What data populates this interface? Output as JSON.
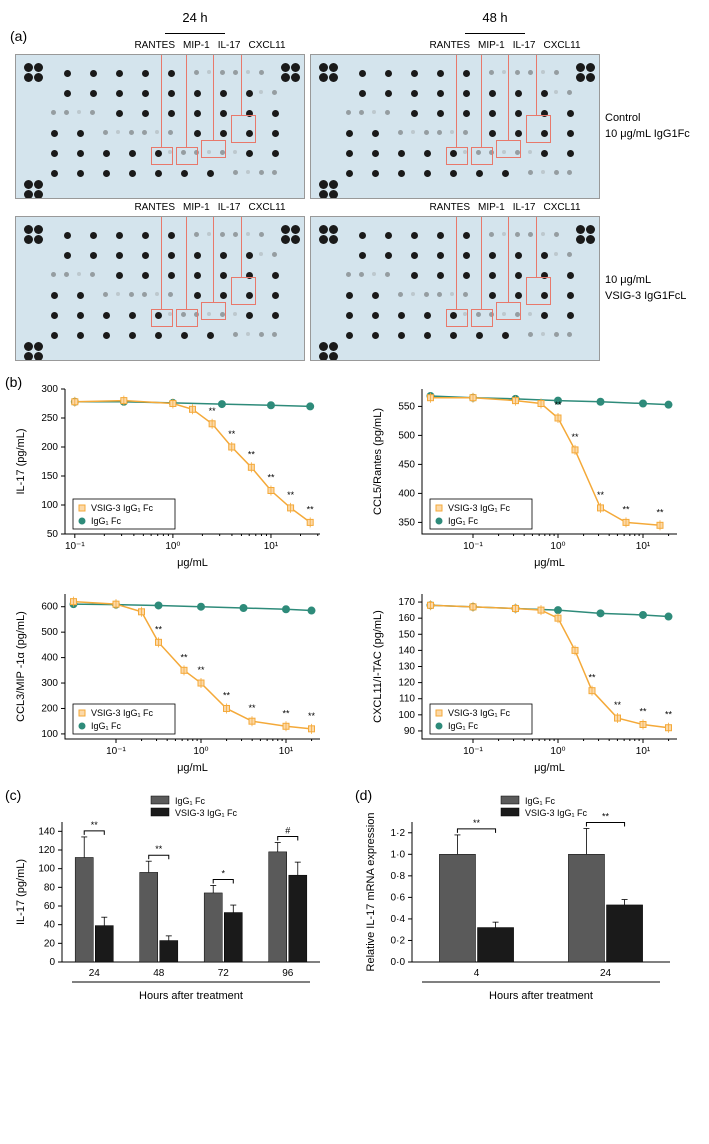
{
  "panelA": {
    "label": "(a)",
    "timeLabels": [
      "24 h",
      "48 h"
    ],
    "analytes": [
      "RANTES",
      "MIP-1",
      "IL-17",
      "CXCL11"
    ],
    "rowLabels": [
      "Control\n10 μg/mL IgG1Fc",
      "10 μg/mL\nVSIG-3 IgG1FcL"
    ],
    "blot_bg": "#d4e4ed",
    "highlight_color": "#e8786b"
  },
  "panelB": {
    "label": "(b)",
    "charts": [
      {
        "ylabel": "IL-17 (pg/mL)",
        "xlabel": "μg/mL",
        "ylim": [
          50,
          300
        ],
        "yticks": [
          50,
          100,
          150,
          200,
          250,
          300
        ],
        "xlim": [
          -1.1,
          1.5
        ],
        "xticks_log": [
          -1,
          0,
          1
        ],
        "xticklabels": [
          "10⁻¹",
          "10⁰",
          "10¹"
        ],
        "vsig": [
          [
            -1.0,
            278
          ],
          [
            -0.5,
            280
          ],
          [
            0,
            275
          ],
          [
            0.2,
            265
          ],
          [
            0.4,
            240
          ],
          [
            0.6,
            200
          ],
          [
            0.8,
            165
          ],
          [
            1.0,
            125
          ],
          [
            1.2,
            95
          ],
          [
            1.4,
            70
          ]
        ],
        "igg": [
          [
            -1.0,
            278
          ],
          [
            -0.5,
            278
          ],
          [
            0,
            276
          ],
          [
            0.5,
            274
          ],
          [
            1.0,
            272
          ],
          [
            1.4,
            270
          ]
        ],
        "sig_x": [
          0.4,
          0.6,
          0.8,
          1.0,
          1.2,
          1.4
        ]
      },
      {
        "ylabel": "CCL5/Rantes (pg/mL)",
        "xlabel": "μg/mL",
        "ylim": [
          330,
          580
        ],
        "yticks": [
          350,
          400,
          450,
          500,
          550
        ],
        "xlim": [
          -1.6,
          1.4
        ],
        "xticks_log": [
          -1,
          0,
          1
        ],
        "xticklabels": [
          "10⁻¹",
          "10⁰",
          "10¹"
        ],
        "vsig": [
          [
            -1.5,
            565
          ],
          [
            -1.0,
            565
          ],
          [
            -0.5,
            560
          ],
          [
            -0.2,
            555
          ],
          [
            0,
            530
          ],
          [
            0.2,
            475
          ],
          [
            0.5,
            375
          ],
          [
            0.8,
            350
          ],
          [
            1.2,
            345
          ]
        ],
        "igg": [
          [
            -1.5,
            568
          ],
          [
            -1.0,
            565
          ],
          [
            -0.5,
            563
          ],
          [
            0,
            560
          ],
          [
            0.5,
            558
          ],
          [
            1.0,
            555
          ],
          [
            1.3,
            553
          ]
        ],
        "sig_x": [
          0,
          0.2,
          0.5,
          0.8,
          1.2
        ]
      },
      {
        "ylabel": "CCL3/MIP -1α (pg/mL)",
        "xlabel": "μg/mL",
        "ylim": [
          80,
          650
        ],
        "yticks": [
          100,
          200,
          300,
          400,
          500,
          600
        ],
        "xlim": [
          -1.6,
          1.4
        ],
        "xticks_log": [
          -1,
          0,
          1
        ],
        "xticklabels": [
          "10⁻¹",
          "10⁰",
          "10¹"
        ],
        "vsig": [
          [
            -1.5,
            620
          ],
          [
            -1.0,
            610
          ],
          [
            -0.7,
            580
          ],
          [
            -0.5,
            460
          ],
          [
            -0.2,
            350
          ],
          [
            0,
            300
          ],
          [
            0.3,
            200
          ],
          [
            0.6,
            150
          ],
          [
            1.0,
            130
          ],
          [
            1.3,
            120
          ]
        ],
        "igg": [
          [
            -1.5,
            610
          ],
          [
            -1.0,
            608
          ],
          [
            -0.5,
            605
          ],
          [
            0,
            600
          ],
          [
            0.5,
            595
          ],
          [
            1.0,
            590
          ],
          [
            1.3,
            585
          ]
        ],
        "sig_x": [
          -0.5,
          -0.2,
          0,
          0.3,
          0.6,
          1.0,
          1.3
        ]
      },
      {
        "ylabel": "CXCL11/I-TAC (pg/mL)",
        "xlabel": "μg/mL",
        "ylim": [
          85,
          175
        ],
        "yticks": [
          90,
          100,
          110,
          120,
          130,
          140,
          150,
          160,
          170
        ],
        "xlim": [
          -1.6,
          1.4
        ],
        "xticks_log": [
          -1,
          0,
          1
        ],
        "xticklabels": [
          "10⁻¹",
          "10⁰",
          "10¹"
        ],
        "vsig": [
          [
            -1.5,
            168
          ],
          [
            -1.0,
            167
          ],
          [
            -0.5,
            166
          ],
          [
            -0.2,
            165
          ],
          [
            0,
            160
          ],
          [
            0.2,
            140
          ],
          [
            0.4,
            115
          ],
          [
            0.7,
            98
          ],
          [
            1.0,
            94
          ],
          [
            1.3,
            92
          ]
        ],
        "igg": [
          [
            -1.5,
            168
          ],
          [
            -1.0,
            167
          ],
          [
            -0.5,
            166
          ],
          [
            0,
            165
          ],
          [
            0.5,
            163
          ],
          [
            1.0,
            162
          ],
          [
            1.3,
            161
          ]
        ],
        "sig_x": [
          0.4,
          0.7,
          1.0,
          1.3
        ]
      }
    ],
    "legend": [
      "VSIG-3 IgG₁ Fc",
      "IgG₁ Fc"
    ],
    "colors": {
      "vsig": "#f4a939",
      "igg": "#2e8b7a"
    }
  },
  "panelC": {
    "label": "(c)",
    "ylabel": "IL-17 (pg/mL)",
    "xlabel": "Hours after treatment",
    "ylim": [
      0,
      150
    ],
    "yticks": [
      0,
      20,
      40,
      60,
      80,
      100,
      120,
      140
    ],
    "categories": [
      "24",
      "48",
      "72",
      "96"
    ],
    "igg_values": [
      112,
      96,
      74,
      118
    ],
    "igg_err": [
      22,
      12,
      8,
      10
    ],
    "vsig_values": [
      39,
      23,
      53,
      93
    ],
    "vsig_err": [
      9,
      5,
      8,
      14
    ],
    "sig": [
      "**",
      "**",
      "*",
      "#"
    ],
    "legend": [
      "IgG₁ Fc",
      "VSIG-3 IgG₁ Fc"
    ],
    "colors": {
      "igg": "#5a5a5a",
      "vsig": "#1a1a1a"
    }
  },
  "panelD": {
    "label": "(d)",
    "ylabel": "Relative IL-17 mRNA expression",
    "xlabel": "Hours after treatment",
    "ylim": [
      0,
      1.3
    ],
    "yticks": [
      0,
      0.2,
      0.4,
      0.6,
      0.8,
      1.0,
      1.2
    ],
    "yticklabels": [
      "0·0",
      "0·2",
      "0·4",
      "0·6",
      "0·8",
      "1·0",
      "1·2"
    ],
    "categories": [
      "4",
      "24"
    ],
    "igg_values": [
      1.0,
      1.0
    ],
    "igg_err": [
      0.18,
      0.24
    ],
    "vsig_values": [
      0.32,
      0.53
    ],
    "vsig_err": [
      0.05,
      0.05
    ],
    "sig": [
      "**",
      "**"
    ],
    "legend": [
      "IgG₁ Fc",
      "VSIG-3 IgG₁ Fc"
    ]
  }
}
